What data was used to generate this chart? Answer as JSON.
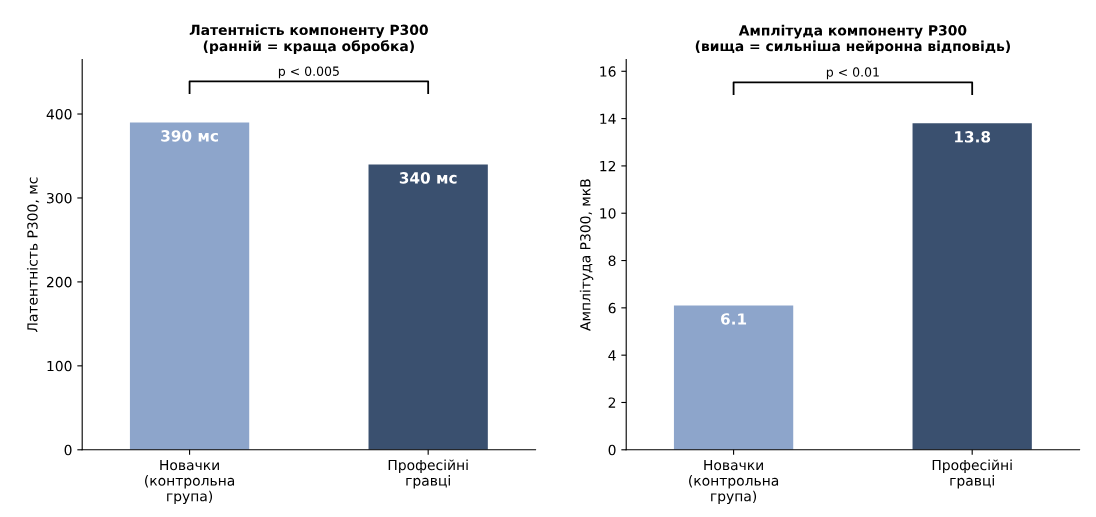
{
  "chart_data": [
    {
      "type": "bar",
      "title": "Латентність компоненту P300\n(ранній = краща обробка)",
      "ylabel": "Латентність P300, мс",
      "categories": [
        "Новачки\n(контрольна\nгрупа)",
        "Професійні\nгравці"
      ],
      "values": [
        390,
        340
      ],
      "colors": [
        "#8da5cb",
        "#3a506f"
      ],
      "value_labels": [
        "390 мс",
        "340 мс"
      ],
      "ylim": [
        0,
        465
      ],
      "yticks": [
        0,
        100,
        200,
        300,
        400
      ],
      "annotations": [
        "p < 0.005"
      ],
      "grid": false
    },
    {
      "type": "bar",
      "title": "Амплітуда компоненту P300\n(вища = сильніша нейронна відповідь)",
      "ylabel": "Амплітуда P300, мкВ",
      "categories": [
        "Новачки\n(контрольна\nгрупа)",
        "Професійні\nгравці"
      ],
      "values": [
        6.1,
        13.8
      ],
      "colors": [
        "#8da5cb",
        "#3a506f"
      ],
      "data_labels": true,
      "ylim": [
        0,
        16.5
      ],
      "yticks": [
        0,
        2,
        4,
        6,
        8,
        10,
        12,
        14,
        16
      ],
      "annotations": [
        "p < 0.01"
      ],
      "grid": false
    }
  ]
}
